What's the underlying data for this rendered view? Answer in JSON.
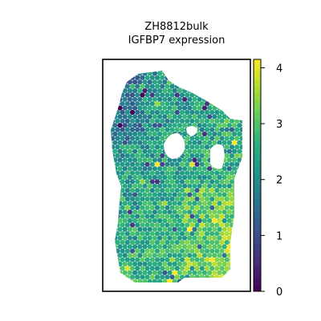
{
  "chart_data": {
    "type": "scatter",
    "subtype": "spatial-hex-spot-map",
    "title": "ZH8812bulk",
    "subtitle": "IGFBP7 expression",
    "xlabel": "",
    "ylabel": "",
    "axes_ticks_visible": false,
    "colorbar": {
      "colormap": "viridis",
      "vmin": 0,
      "vmax": 4.15,
      "ticks": [
        0,
        1,
        2,
        3,
        4
      ],
      "tick_labels": [
        "0",
        "1",
        "2",
        "3",
        "4"
      ]
    },
    "value_distribution": {
      "typical_range": [
        1.5,
        3.2
      ],
      "low_values_region": "upper-left edge and left margin of tissue",
      "high_values_region": "lower-right of tissue"
    },
    "holes_in_tissue": 3
  }
}
